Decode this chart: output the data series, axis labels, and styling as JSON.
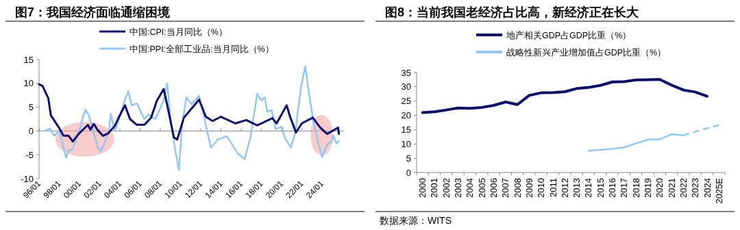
{
  "chart_data": [
    {
      "type": "line",
      "title": "图7：我国经济面临通缩困境",
      "legend": "top",
      "xlim": [
        "1996-01",
        "2026-03"
      ],
      "xticks": [
        {
          "value": "1996-01",
          "label": "96/01"
        },
        {
          "value": "1998-01",
          "label": "98/01"
        },
        {
          "value": "2000-01",
          "label": "00/01"
        },
        {
          "value": "2002-01",
          "label": "02/01"
        },
        {
          "value": "2004-01",
          "label": "04/01"
        },
        {
          "value": "2006-01",
          "label": "06/01"
        },
        {
          "value": "2008-01",
          "label": "08/01"
        },
        {
          "value": "2010-01",
          "label": "10/01"
        },
        {
          "value": "2012-01",
          "label": "12/01"
        },
        {
          "value": "2014-01",
          "label": "14/01"
        },
        {
          "value": "2016-01",
          "label": "16/01"
        },
        {
          "value": "2018-01",
          "label": "18/01"
        },
        {
          "value": "2020-01",
          "label": "20/01"
        },
        {
          "value": "2022-01",
          "label": "22/01"
        },
        {
          "value": "2024-01",
          "label": "24/01"
        }
      ],
      "ylim": [
        -10,
        15
      ],
      "yticks": [
        -10,
        -5,
        0,
        5,
        10,
        15
      ],
      "series": [
        {
          "name": "中国:CPI:当月同比（%）",
          "color": "#0c0c6e",
          "x": [
            "1996-01",
            "1996-05",
            "1996-12",
            "1997-03",
            "1998-01",
            "1998-06",
            "1998-12",
            "1999-05",
            "1999-12",
            "2000-07",
            "2000-11",
            "2001-02",
            "2001-06",
            "2001-11",
            "2002-05",
            "2002-11",
            "2003-07",
            "2003-12",
            "2004-07",
            "2005-01",
            "2005-09",
            "2006-06",
            "2007-02",
            "2007-09",
            "2008-05",
            "2008-09",
            "2009-05",
            "2009-09",
            "2010-05",
            "2011-11",
            "2012-07",
            "2013-03",
            "2014-01",
            "2015-06",
            "2016-07",
            "2017-08",
            "2019-02",
            "2019-07",
            "2020-07",
            "2020-11",
            "2021-06",
            "2022-01",
            "2023-02",
            "2023-11",
            "2024-07",
            "2025-08",
            "2025-09"
          ],
          "values": [
            9.8,
            9.5,
            6.9,
            3.3,
            0.6,
            -1.0,
            -1.0,
            -2.2,
            -0.6,
            0.6,
            1.3,
            0.3,
            1.5,
            0.1,
            -1.0,
            -0.5,
            1.1,
            3.0,
            5.4,
            2.5,
            1.3,
            1.3,
            2.8,
            6.4,
            8.8,
            5.6,
            -1.3,
            -1.8,
            2.8,
            6.6,
            3.0,
            2.1,
            3.0,
            1.6,
            2.3,
            1.2,
            2.7,
            1.6,
            5.4,
            3.0,
            -0.3,
            1.6,
            2.8,
            0.7,
            -0.6,
            0.7,
            -0.6
          ]
        },
        {
          "name": "中国:PPI:全部工业品:当月同比（%）",
          "color": "#93c6f2",
          "x": [
            "1996-09",
            "1997-02",
            "1997-07",
            "1998-01",
            "1998-09",
            "1998-12",
            "1999-05",
            "1999-12",
            "2000-05",
            "2000-08",
            "2000-12",
            "2001-05",
            "2001-11",
            "2002-02",
            "2002-07",
            "2002-12",
            "2003-02",
            "2003-07",
            "2003-12",
            "2004-07",
            "2004-11",
            "2005-03",
            "2005-09",
            "2006-06",
            "2006-11",
            "2007-07",
            "2008-05",
            "2008-09",
            "2009-02",
            "2009-07",
            "2009-11",
            "2010-03",
            "2010-08",
            "2011-02",
            "2011-11",
            "2012-03",
            "2012-09",
            "2013-01",
            "2013-09",
            "2014-08",
            "2015-09",
            "2016-05",
            "2016-12",
            "2017-08",
            "2018-01",
            "2018-05",
            "2018-08",
            "2019-01",
            "2019-06",
            "2020-01",
            "2020-05",
            "2020-12",
            "2021-05",
            "2021-12",
            "2022-05",
            "2022-09",
            "2023-03",
            "2023-08",
            "2024-01",
            "2024-07",
            "2024-12",
            "2025-02",
            "2025-06",
            "2025-09"
          ],
          "values": [
            0.2,
            0.5,
            -1.0,
            0.0,
            -5.6,
            -4.2,
            -3.8,
            -0.2,
            2.8,
            4.5,
            3.3,
            0.1,
            -3.5,
            -4.3,
            -2.4,
            0.1,
            3.6,
            0.1,
            2.5,
            6.6,
            8.3,
            5.4,
            5.8,
            2.5,
            3.5,
            2.5,
            6.4,
            10.0,
            1.4,
            -4.3,
            -8.2,
            1.6,
            7.1,
            5.6,
            7.4,
            4.4,
            -0.4,
            -3.5,
            -1.8,
            -1.1,
            -4.7,
            -5.9,
            -1.3,
            7.8,
            6.4,
            7.1,
            4.0,
            4.4,
            0.4,
            0.9,
            -1.5,
            -3.5,
            -0.4,
            9.2,
            13.6,
            8.5,
            1.6,
            -2.3,
            -5.4,
            -2.8,
            -2.3,
            -0.9,
            -2.6,
            -2.1
          ]
        }
      ]
    },
    {
      "type": "line",
      "title": "图8：当前我国老经济占比高，新经济正在长大",
      "legend": "top",
      "categories": [
        "2000",
        "2001",
        "2002",
        "2003",
        "2004",
        "2005",
        "2006",
        "2007",
        "2008",
        "2009",
        "2010",
        "2011",
        "2012",
        "2013",
        "2014",
        "2015",
        "2016",
        "2017",
        "2018",
        "2019",
        "2020",
        "2021",
        "2022",
        "2023",
        "2024",
        "2025E"
      ],
      "ylim": [
        0,
        35
      ],
      "yticks": [
        0,
        5,
        10,
        15,
        20,
        25,
        30,
        35
      ],
      "annotations": [
        "数据来源：WITS"
      ],
      "series": [
        {
          "name": "地产相关GDP占GDP比重（%）",
          "color": "#0c0c6e",
          "values": [
            21.0,
            21.3,
            21.9,
            22.6,
            22.5,
            22.8,
            23.5,
            24.7,
            23.8,
            27.0,
            27.9,
            28.0,
            28.3,
            29.4,
            29.8,
            30.5,
            31.7,
            31.8,
            32.4,
            32.5,
            32.6,
            30.6,
            28.9,
            28.2,
            26.7,
            null
          ]
        },
        {
          "name": "战略性新兴产业增加值占GDP比重（%）",
          "color": "#93c6f2",
          "values": [
            null,
            null,
            null,
            null,
            null,
            null,
            null,
            null,
            null,
            null,
            null,
            null,
            null,
            null,
            7.6,
            7.9,
            8.3,
            8.8,
            10.2,
            11.5,
            11.6,
            13.4,
            13.0,
            null,
            null,
            null
          ]
        },
        {
          "color": "#93c6f2",
          "line_style": "dashed",
          "values": [
            null,
            null,
            null,
            null,
            null,
            null,
            null,
            null,
            null,
            null,
            null,
            null,
            null,
            null,
            null,
            null,
            null,
            null,
            null,
            null,
            null,
            null,
            13.0,
            14.3,
            15.5,
            16.6
          ]
        }
      ]
    }
  ]
}
